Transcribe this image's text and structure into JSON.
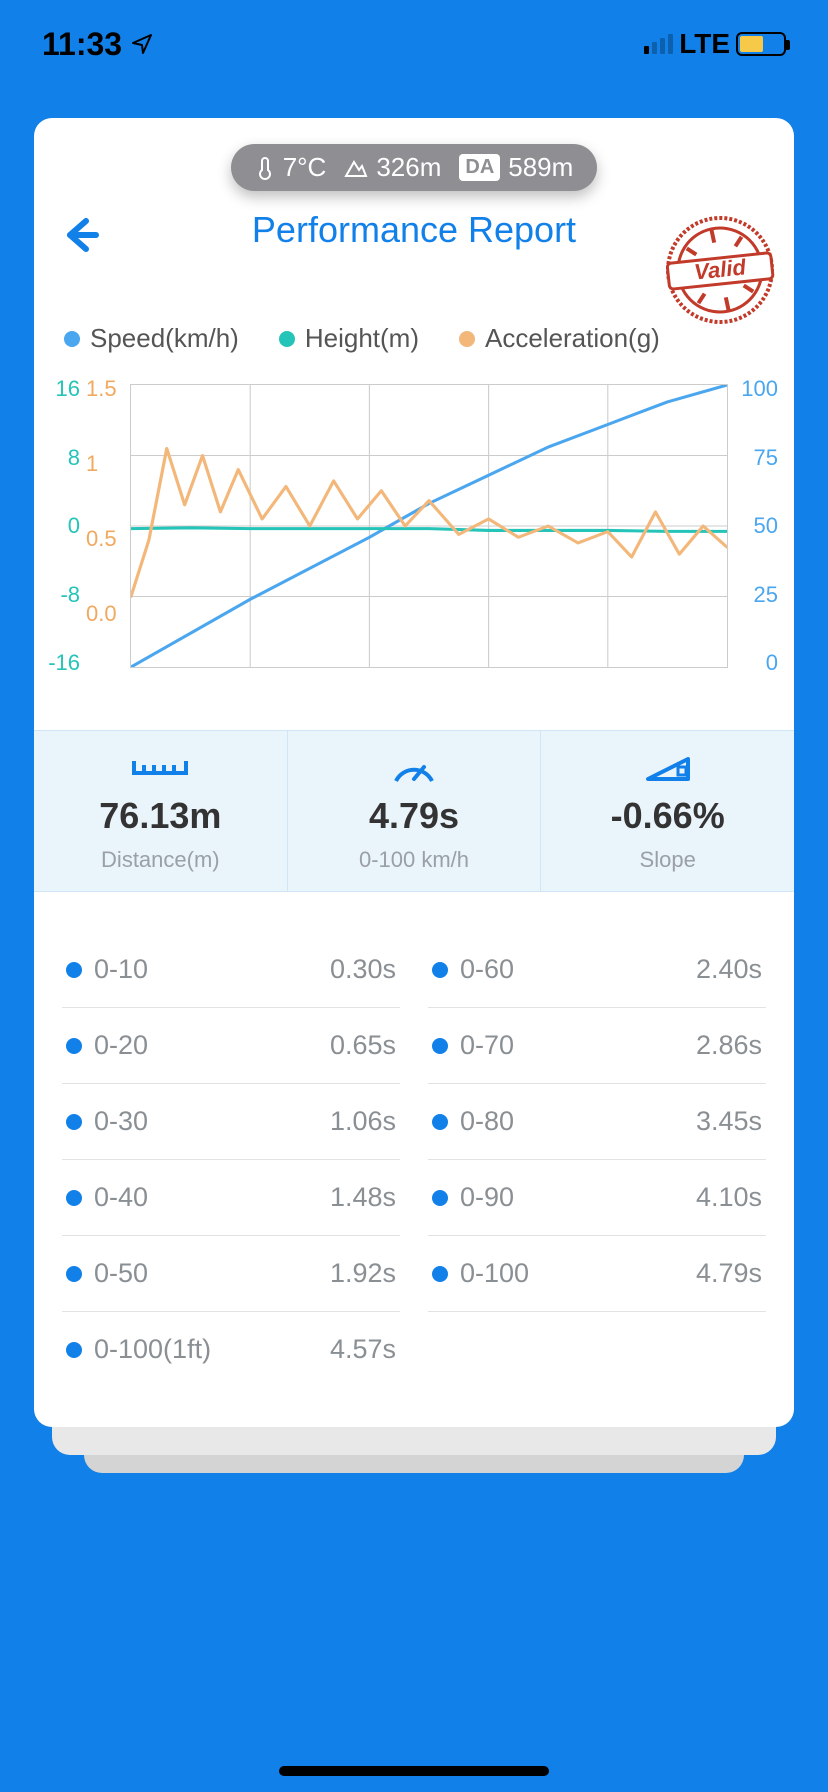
{
  "status": {
    "time": "11:33",
    "network": "LTE"
  },
  "colors": {
    "background": "#1280e9",
    "card": "#ffffff",
    "primary": "#1280e9",
    "pill": "#8e8e93",
    "stamp": "#c23a2a",
    "text_muted": "#8a8f94",
    "grid": "#cccccc",
    "metric_bg": "#eaf4fb"
  },
  "env": {
    "temp": "7°C",
    "alt": "326m",
    "da_label": "DA",
    "da": "589m"
  },
  "title": "Performance Report",
  "stamp_text": "Valid",
  "chart": {
    "type": "line",
    "series": [
      {
        "key": "speed",
        "label": "Speed(km/h)",
        "color": "#4aa6ee",
        "axis": "right",
        "points": [
          [
            0,
            0
          ],
          [
            10,
            12
          ],
          [
            20,
            24
          ],
          [
            30,
            35
          ],
          [
            40,
            46
          ],
          [
            50,
            58
          ],
          [
            60,
            68
          ],
          [
            70,
            78
          ],
          [
            80,
            86
          ],
          [
            90,
            94
          ],
          [
            100,
            100
          ]
        ]
      },
      {
        "key": "height",
        "label": "Height(m)",
        "color": "#25c4b8",
        "axis": "left1",
        "points": [
          [
            0,
            -0.3
          ],
          [
            10,
            -0.2
          ],
          [
            20,
            -0.3
          ],
          [
            30,
            -0.3
          ],
          [
            40,
            -0.3
          ],
          [
            50,
            -0.3
          ],
          [
            60,
            -0.5
          ],
          [
            70,
            -0.5
          ],
          [
            80,
            -0.5
          ],
          [
            90,
            -0.6
          ],
          [
            100,
            -0.6
          ]
        ]
      },
      {
        "key": "accel",
        "label": "Acceleration(g)",
        "color": "#f3b77a",
        "axis": "left2",
        "points": [
          [
            0,
            0.0
          ],
          [
            3,
            0.4
          ],
          [
            6,
            1.05
          ],
          [
            9,
            0.65
          ],
          [
            12,
            1.0
          ],
          [
            15,
            0.6
          ],
          [
            18,
            0.9
          ],
          [
            22,
            0.55
          ],
          [
            26,
            0.78
          ],
          [
            30,
            0.5
          ],
          [
            34,
            0.82
          ],
          [
            38,
            0.55
          ],
          [
            42,
            0.75
          ],
          [
            46,
            0.5
          ],
          [
            50,
            0.68
          ],
          [
            55,
            0.44
          ],
          [
            60,
            0.55
          ],
          [
            65,
            0.42
          ],
          [
            70,
            0.5
          ],
          [
            75,
            0.38
          ],
          [
            80,
            0.46
          ],
          [
            84,
            0.28
          ],
          [
            88,
            0.6
          ],
          [
            92,
            0.3
          ],
          [
            96,
            0.5
          ],
          [
            100,
            0.35
          ]
        ]
      }
    ],
    "y_left1": {
      "label_color": "#25c4b8",
      "ticks": [
        "16",
        "8",
        "0",
        "-8",
        "-16"
      ],
      "lim": [
        -16,
        16
      ]
    },
    "y_left2": {
      "label_color": "#f0a95f",
      "ticks": [
        "1.5",
        "1",
        "0.5",
        "0.0",
        ""
      ],
      "lim": [
        -0.5,
        1.5
      ]
    },
    "y_right": {
      "label_color": "#4aa6ee",
      "ticks": [
        "100",
        "75",
        "50",
        "25",
        "0"
      ],
      "lim": [
        0,
        100
      ]
    },
    "x_lim": [
      0,
      100
    ],
    "grid_x_count": 4,
    "grid_y_count": 3,
    "line_width": 3
  },
  "metrics": [
    {
      "icon": "ruler-icon",
      "value": "76.13m",
      "label": "Distance(m)"
    },
    {
      "icon": "gauge-icon",
      "value": "4.79s",
      "label": "0-100 km/h"
    },
    {
      "icon": "slope-icon",
      "value": "-0.66%",
      "label": "Slope"
    }
  ],
  "splits": {
    "left": [
      {
        "label": "0-10",
        "value": "0.30s"
      },
      {
        "label": "0-20",
        "value": "0.65s"
      },
      {
        "label": "0-30",
        "value": "1.06s"
      },
      {
        "label": "0-40",
        "value": "1.48s"
      },
      {
        "label": "0-50",
        "value": "1.92s"
      },
      {
        "label": "0-100(1ft)",
        "value": "4.57s"
      }
    ],
    "right": [
      {
        "label": "0-60",
        "value": "2.40s"
      },
      {
        "label": "0-70",
        "value": "2.86s"
      },
      {
        "label": "0-80",
        "value": "3.45s"
      },
      {
        "label": "0-90",
        "value": "4.10s"
      },
      {
        "label": "0-100",
        "value": "4.79s"
      }
    ]
  }
}
